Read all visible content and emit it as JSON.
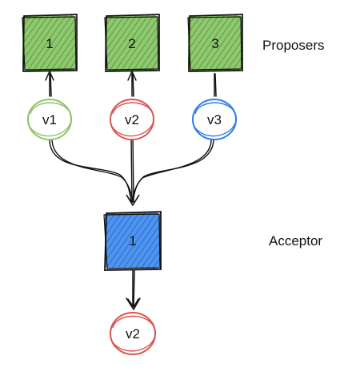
{
  "colors": {
    "proposer_fill": "#7cba5c",
    "acceptor_fill": "#3f86e6",
    "stroke": "#111111",
    "green": "#8dc26a",
    "red": "#d9544f",
    "blue": "#2f7ce6"
  },
  "labels": {
    "proposers": "Proposers",
    "acceptor": "Acceptor"
  },
  "proposers": [
    {
      "id": "1",
      "value": "v1",
      "value_color": "green"
    },
    {
      "id": "2",
      "value": "v2",
      "value_color": "red"
    },
    {
      "id": "3",
      "value": "v3",
      "value_color": "blue"
    }
  ],
  "acceptor": {
    "id": "1",
    "value": "v2",
    "value_color": "red"
  }
}
